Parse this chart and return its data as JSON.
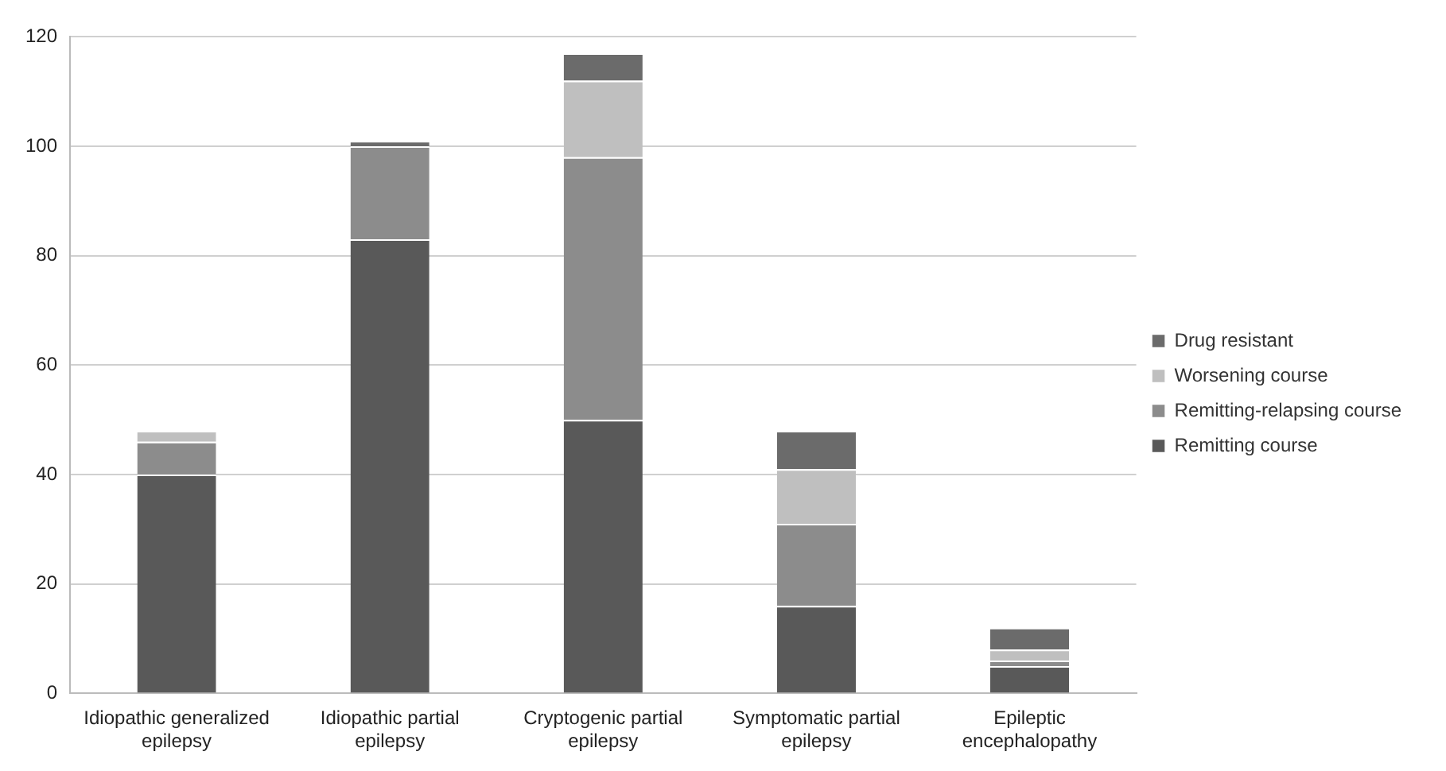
{
  "chart_data": {
    "type": "bar",
    "stacked": true,
    "categories": [
      "Idiopathic generalized epilepsy",
      "Idiopathic partial epilepsy",
      "Cryptogenic partial epilepsy",
      "Symptomatic partial epilepsy",
      "Epileptic encephalopathy"
    ],
    "series": [
      {
        "name": "Remitting course",
        "color": "#595959",
        "values": [
          40,
          83,
          50,
          16,
          5
        ]
      },
      {
        "name": "Remitting-relapsing course",
        "color": "#8c8c8c",
        "values": [
          6,
          17,
          48,
          15,
          1
        ]
      },
      {
        "name": "Worsening course",
        "color": "#bfbfbf",
        "values": [
          2,
          0,
          14,
          10,
          2
        ]
      },
      {
        "name": "Drug resistant",
        "color": "#6b6b6b",
        "values": [
          0,
          1,
          5,
          7,
          4
        ]
      }
    ],
    "ylim": [
      0,
      120
    ],
    "yticks": [
      0,
      20,
      40,
      60,
      80,
      100,
      120
    ],
    "grid": "y",
    "legend": "right"
  }
}
